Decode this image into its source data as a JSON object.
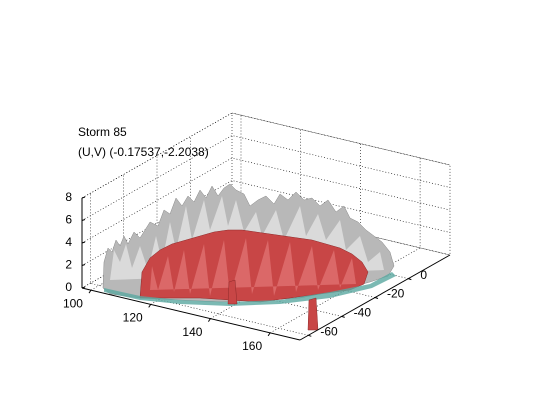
{
  "chart_data": {
    "type": "isosurface",
    "title": "Storm 85",
    "subtitle": "(U,V) (-0.17537,-2.2038)",
    "xlim": [
      97,
      170
    ],
    "xticks": [
      100,
      120,
      140,
      160
    ],
    "ylim": [
      -65,
      25
    ],
    "yticks": [
      -60,
      -40,
      -20,
      0
    ],
    "zlim": [
      0,
      8
    ],
    "zticks": [
      0,
      2,
      4,
      6,
      8
    ],
    "grid": true
  }
}
